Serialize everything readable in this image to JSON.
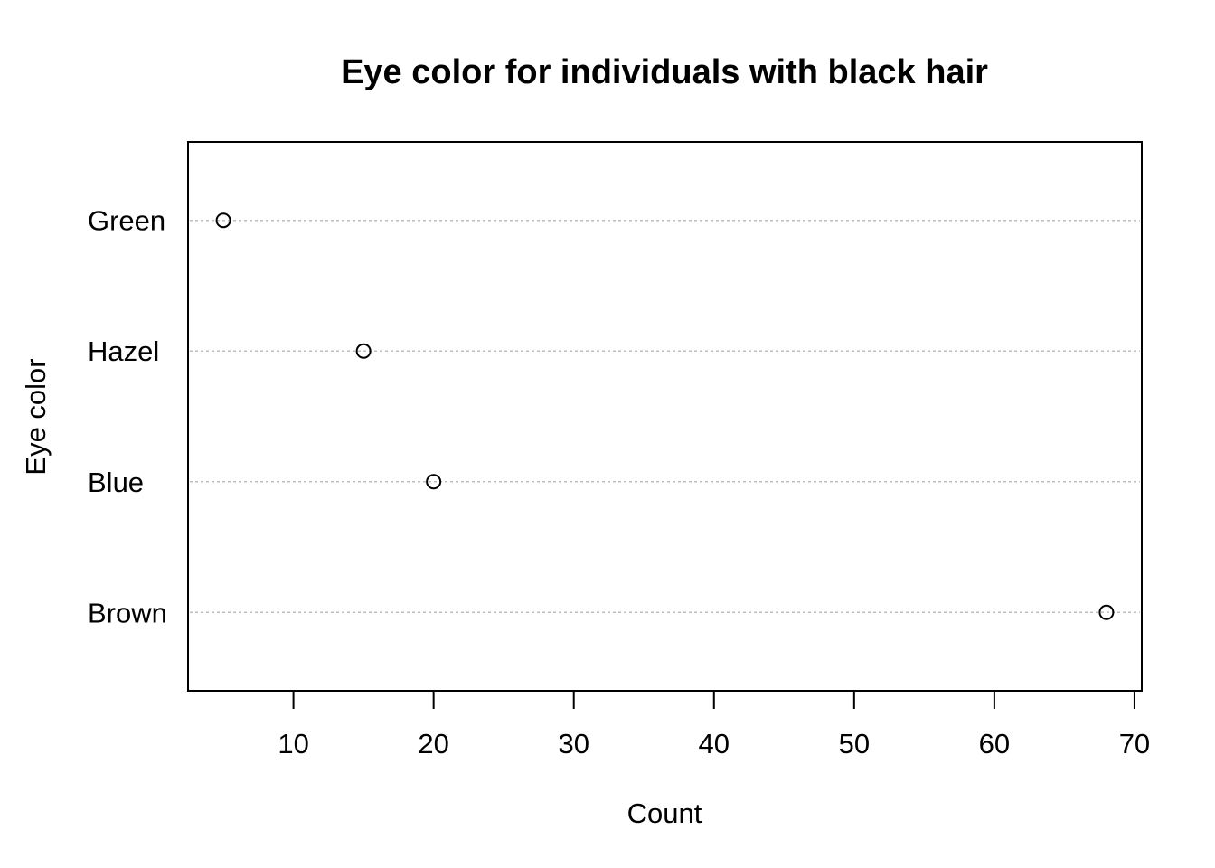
{
  "chart_data": {
    "type": "scatter",
    "subtype": "dotchart",
    "title": "Eye color for individuals with black hair",
    "xlabel": "Count",
    "ylabel": "Eye color",
    "categories": [
      "Brown",
      "Blue",
      "Hazel",
      "Green"
    ],
    "values": [
      68,
      20,
      15,
      5
    ],
    "xlim": [
      2.48,
      70.52
    ],
    "xticks": [
      10,
      20,
      30,
      40,
      50,
      60,
      70
    ],
    "grid": "horizontal dotted guide lines",
    "legend": "none",
    "colors": {
      "points": "#000000",
      "guides": "#bebebe",
      "frame": "#000000"
    }
  }
}
